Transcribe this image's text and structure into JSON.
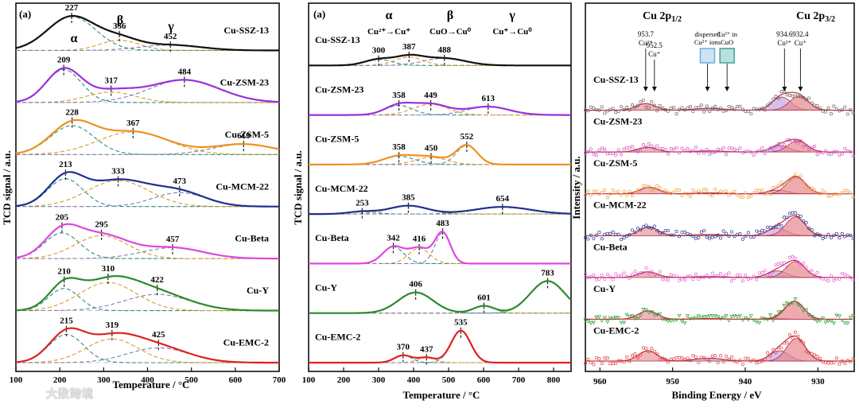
{
  "watermark": "大数跨境",
  "chart_data": [
    {
      "type": "line",
      "panel_label": "(a)",
      "title": "",
      "xlabel": "Temperature / °C",
      "ylabel": "TCD signal / a.u.",
      "xlim": [
        100,
        700
      ],
      "xticks": [
        100,
        200,
        300,
        400,
        500,
        600,
        700
      ],
      "xticklabels": [
        "100",
        "200",
        "300",
        "400",
        "500",
        "600",
        "700"
      ],
      "peak_groups": [
        "α",
        "β",
        "γ"
      ],
      "series": [
        {
          "name": "Cu-SSZ-13",
          "color": "#111111",
          "peaks": [
            {
              "center": 227,
              "label": "227",
              "amp": 1.0,
              "width": 55
            },
            {
              "center": 336,
              "label": "336",
              "amp": 0.3,
              "width": 45
            },
            {
              "center": 452,
              "label": "452",
              "amp": 0.16,
              "width": 70
            }
          ]
        },
        {
          "name": "Cu-ZSM-23",
          "color": "#9b30d9",
          "peaks": [
            {
              "center": 209,
              "label": "209",
              "amp": 0.95,
              "width": 40
            },
            {
              "center": 317,
              "label": "317",
              "amp": 0.3,
              "width": 55
            },
            {
              "center": 484,
              "label": "484",
              "amp": 0.65,
              "width": 80
            }
          ]
        },
        {
          "name": "Cu-ZSM-5",
          "color": "#f0901e",
          "peaks": [
            {
              "center": 228,
              "label": "228",
              "amp": 0.7,
              "width": 50
            },
            {
              "center": 367,
              "label": "367",
              "amp": 0.55,
              "width": 80
            },
            {
              "center": 619,
              "label": "619",
              "amp": 0.25,
              "width": 70
            }
          ]
        },
        {
          "name": "Cu-MCM-22",
          "color": "#1f2f8f",
          "peaks": [
            {
              "center": 213,
              "label": "213",
              "amp": 0.8,
              "width": 40
            },
            {
              "center": 333,
              "label": "333",
              "amp": 0.75,
              "width": 70
            },
            {
              "center": 473,
              "label": "473",
              "amp": 0.4,
              "width": 60
            }
          ]
        },
        {
          "name": "Cu-Beta",
          "color": "#e046e0",
          "peaks": [
            {
              "center": 205,
              "label": "205",
              "amp": 0.95,
              "width": 40
            },
            {
              "center": 295,
              "label": "295",
              "amp": 0.85,
              "width": 60
            },
            {
              "center": 457,
              "label": "457",
              "amp": 0.4,
              "width": 70
            }
          ]
        },
        {
          "name": "Cu-Y",
          "color": "#2a8a2a",
          "peaks": [
            {
              "center": 210,
              "label": "210",
              "amp": 0.75,
              "width": 35
            },
            {
              "center": 310,
              "label": "310",
              "amp": 0.95,
              "width": 65
            },
            {
              "center": 422,
              "label": "422",
              "amp": 0.55,
              "width": 75
            }
          ]
        },
        {
          "name": "Cu-EMC-2",
          "color": "#e02020",
          "peaks": [
            {
              "center": 215,
              "label": "215",
              "amp": 0.95,
              "width": 40
            },
            {
              "center": 319,
              "label": "319",
              "amp": 0.8,
              "width": 60
            },
            {
              "center": 425,
              "label": "425",
              "amp": 0.5,
              "width": 70
            }
          ]
        }
      ]
    },
    {
      "type": "line",
      "panel_label": "(a)",
      "title": "",
      "xlabel": "Temperature / °C",
      "ylabel": "TCD signal / a.u.",
      "xlim": [
        100,
        850
      ],
      "xticks": [
        100,
        200,
        300,
        400,
        500,
        600,
        700,
        800
      ],
      "xticklabels": [
        "100",
        "200",
        "300",
        "400",
        "500",
        "600",
        "700",
        "800"
      ],
      "peak_groups": [
        {
          "symbol": "α",
          "reaction": "Cu²⁺→Cu⁺"
        },
        {
          "symbol": "β",
          "reaction": "CuO→Cu⁰"
        },
        {
          "symbol": "γ",
          "reaction": "Cu⁺→Cu⁰"
        }
      ],
      "series": [
        {
          "name": "Cu-SSZ-13",
          "color": "#111111",
          "peaks": [
            {
              "center": 300,
              "label": "300",
              "amp": 0.25,
              "width": 40
            },
            {
              "center": 387,
              "label": "387",
              "amp": 0.35,
              "width": 40
            },
            {
              "center": 488,
              "label": "488",
              "amp": 0.3,
              "width": 60
            }
          ]
        },
        {
          "name": "Cu-ZSM-23",
          "color": "#9b30d9",
          "peaks": [
            {
              "center": 358,
              "label": "358",
              "amp": 0.4,
              "width": 40
            },
            {
              "center": 449,
              "label": "449",
              "amp": 0.45,
              "width": 50
            },
            {
              "center": 613,
              "label": "613",
              "amp": 0.35,
              "width": 60
            }
          ]
        },
        {
          "name": "Cu-ZSM-5",
          "color": "#f0901e",
          "peaks": [
            {
              "center": 358,
              "label": "358",
              "amp": 0.35,
              "width": 45
            },
            {
              "center": 450,
              "label": "450",
              "amp": 0.3,
              "width": 45
            },
            {
              "center": 552,
              "label": "552",
              "amp": 0.8,
              "width": 30
            }
          ]
        },
        {
          "name": "Cu-MCM-22",
          "color": "#1f2f8f",
          "peaks": [
            {
              "center": 253,
              "label": "253",
              "amp": 0.1,
              "width": 40
            },
            {
              "center": 385,
              "label": "385",
              "amp": 0.35,
              "width": 55
            },
            {
              "center": 654,
              "label": "654",
              "amp": 0.3,
              "width": 80
            }
          ]
        },
        {
          "name": "Cu-Beta",
          "color": "#e046e0",
          "peaks": [
            {
              "center": 342,
              "label": "342",
              "amp": 1.2,
              "width": 30
            },
            {
              "center": 416,
              "label": "416",
              "amp": 1.1,
              "width": 30
            },
            {
              "center": 483,
              "label": "483",
              "amp": 2.2,
              "width": 22
            }
          ]
        },
        {
          "name": "Cu-Y",
          "color": "#2a8a2a",
          "peaks": [
            {
              "center": 406,
              "label": "406",
              "amp": 1.0,
              "width": 50
            },
            {
              "center": 601,
              "label": "601",
              "amp": 0.35,
              "width": 30
            },
            {
              "center": 783,
              "label": "783",
              "amp": 1.55,
              "width": 50
            }
          ]
        },
        {
          "name": "Cu-EMC-2",
          "color": "#e02020",
          "peaks": [
            {
              "center": 370,
              "label": "370",
              "amp": 0.5,
              "width": 25
            },
            {
              "center": 437,
              "label": "437",
              "amp": 0.35,
              "width": 25
            },
            {
              "center": 535,
              "label": "535",
              "amp": 2.2,
              "width": 28
            }
          ]
        }
      ]
    },
    {
      "type": "scatter",
      "title_left": "Cu 2p",
      "title_left_sub": "1/2",
      "title_right": "Cu 2p",
      "title_right_sub": "3/2",
      "xlabel": "Binding Energy / eV",
      "ylabel": "Intensity / a.u.",
      "xlim": [
        962,
        925
      ],
      "xticks": [
        960,
        950,
        940,
        930
      ],
      "xticklabels": [
        "960",
        "950",
        "940",
        "930"
      ],
      "annotations": [
        {
          "value": "953.7",
          "species": "Cu²⁺",
          "x": 953.7
        },
        {
          "value": "952.5",
          "species": "Cu⁺",
          "x": 952.5
        },
        {
          "value": "934.6",
          "species": "Cu²⁺",
          "x": 934.6
        },
        {
          "value": "932.4",
          "species": "Cu⁺",
          "x": 932.4
        }
      ],
      "legend_boxes": [
        {
          "label_line1": "dispersed",
          "label_line2": "Cu²⁺ ions",
          "color": "#6aaee0",
          "x": 945.2
        },
        {
          "label_line1": "Cu²⁺ in",
          "label_line2": "CuO",
          "color": "#3aa59a",
          "x": 942.5
        }
      ],
      "series": [
        {
          "name": "Cu-SSZ-13",
          "color": "#666666",
          "marker": "circle",
          "peaks": [
            {
              "center": 953.7,
              "amp": 0.35
            },
            {
              "center": 945.0,
              "amp": 0.1
            },
            {
              "center": 935.0,
              "amp": 0.7
            },
            {
              "center": 932.6,
              "amp": 0.75
            }
          ]
        },
        {
          "name": "Cu-ZSM-23",
          "color": "#cc55cc",
          "marker": "circle",
          "peaks": [
            {
              "center": 953.5,
              "amp": 0.25
            },
            {
              "center": 945.0,
              "amp": 0.06
            },
            {
              "center": 935.2,
              "amp": 0.35
            },
            {
              "center": 932.8,
              "amp": 0.6
            }
          ]
        },
        {
          "name": "Cu-ZSM-5",
          "color": "#f0a040",
          "marker": "circle",
          "peaks": [
            {
              "center": 953.2,
              "amp": 0.35
            },
            {
              "center": 945.0,
              "amp": 0.05
            },
            {
              "center": 935.5,
              "amp": 0.2
            },
            {
              "center": 933.0,
              "amp": 0.9
            }
          ]
        },
        {
          "name": "Cu-MCM-22",
          "color": "#2a3a9a",
          "marker": "circle",
          "peaks": [
            {
              "center": 953.3,
              "amp": 0.45
            },
            {
              "center": 945.0,
              "amp": 0.06
            },
            {
              "center": 935.6,
              "amp": 0.4
            },
            {
              "center": 933.1,
              "amp": 1.0
            }
          ]
        },
        {
          "name": "Cu-Beta",
          "color": "#e060e0",
          "marker": "circle",
          "peaks": [
            {
              "center": 953.4,
              "amp": 0.3
            },
            {
              "center": 945.0,
              "amp": 0.05
            },
            {
              "center": 935.6,
              "amp": 0.35
            },
            {
              "center": 933.1,
              "amp": 0.85
            }
          ]
        },
        {
          "name": "Cu-Y",
          "color": "#2e9a2e",
          "marker": "triangle",
          "peaks": [
            {
              "center": 953.4,
              "amp": 0.45
            },
            {
              "center": 945.0,
              "amp": 0.04
            },
            {
              "center": 935.6,
              "amp": 0.05
            },
            {
              "center": 933.2,
              "amp": 0.95
            }
          ]
        },
        {
          "name": "Cu-EMC-2",
          "color": "#e04040",
          "marker": "circle",
          "peaks": [
            {
              "center": 953.4,
              "amp": 0.55
            },
            {
              "center": 945.0,
              "amp": 0.15
            },
            {
              "center": 935.3,
              "amp": 0.55
            },
            {
              "center": 933.0,
              "amp": 1.2
            }
          ]
        }
      ]
    }
  ]
}
